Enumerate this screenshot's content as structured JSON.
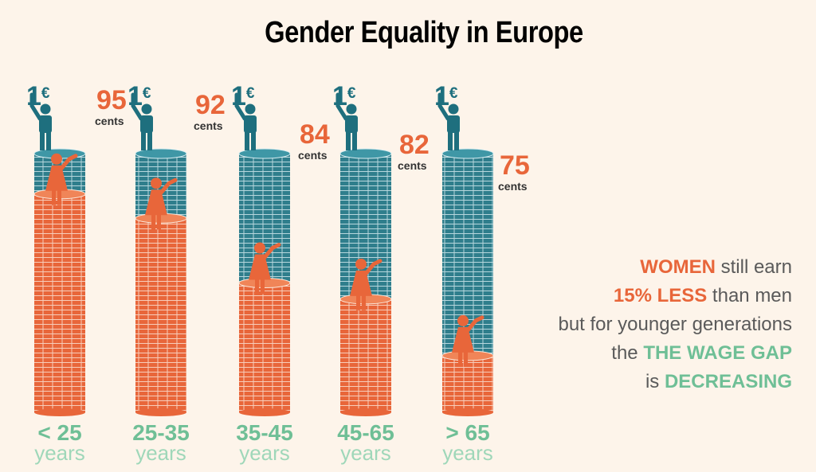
{
  "title": "Gender Equality in Europe",
  "colors": {
    "men_coin": "#2f7e8c",
    "women_coin": "#e8663a",
    "man_figure": "#1e6f7e",
    "woman_figure": "#e8663a",
    "age_label": "#6fbf96",
    "background": "#fdf4ea"
  },
  "chart_data": {
    "type": "bar",
    "title": "Gender Equality in Europe",
    "categories": [
      "< 25",
      "25-35",
      "35-45",
      "45-65",
      "> 65"
    ],
    "category_unit": "years",
    "series": [
      {
        "name": "men",
        "values": [
          100,
          100,
          100,
          100,
          100
        ]
      },
      {
        "name": "women",
        "values": [
          95,
          92,
          84,
          82,
          75
        ]
      }
    ],
    "men_label": "1€",
    "women_unit": "cents",
    "women_labels": [
      "95",
      "92",
      "84",
      "82",
      "75"
    ],
    "ylim": [
      0,
      100
    ],
    "grid": false
  },
  "message": {
    "l1a": "WOMEN",
    "l1b": " still earn",
    "l2a": "15% LESS",
    "l2b": " than men",
    "l3": "but for younger generations",
    "l4a": "the ",
    "l4b": "THE WAGE GAP",
    "l5a": "is ",
    "l5b": "DECREASING"
  }
}
